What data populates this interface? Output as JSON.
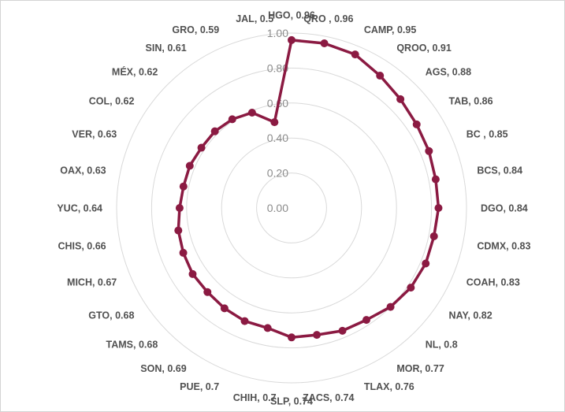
{
  "chart_data": {
    "type": "radar",
    "title": "",
    "rlim": [
      0,
      1
    ],
    "r_ticks": [
      "0.00",
      "0.20",
      "0.40",
      "0.60",
      "0.80",
      "1.00"
    ],
    "grid": true,
    "legend": "none",
    "series_color": "#8B1A42",
    "categories": [
      "HGO",
      "QRO",
      "CAMP",
      "QROO",
      "AGS",
      "TAB",
      "BC",
      "BCS",
      "DGO",
      "CDMX",
      "COAH",
      "NAY",
      "NL",
      "MOR",
      "TLAX",
      "ZACS",
      "SLP",
      "CHIH",
      "PUE",
      "SON",
      "TAMS",
      "GTO",
      "MICH",
      "CHIS",
      "YUC",
      "OAX",
      "VER",
      "COL",
      "MÉX",
      "SIN",
      "GRO",
      "JAL"
    ],
    "values": [
      0.96,
      0.96,
      0.95,
      0.91,
      0.88,
      0.86,
      0.85,
      0.84,
      0.84,
      0.83,
      0.83,
      0.82,
      0.8,
      0.77,
      0.76,
      0.74,
      0.74,
      0.7,
      0.7,
      0.69,
      0.68,
      0.68,
      0.67,
      0.66,
      0.64,
      0.63,
      0.63,
      0.62,
      0.62,
      0.61,
      0.59,
      0.5
    ],
    "labels": [
      "HGO, 0.96",
      "QRO , 0.96",
      "CAMP, 0.95",
      "QROO, 0.91",
      "AGS, 0.88",
      "TAB, 0.86",
      "BC , 0.85",
      "BCS, 0.84",
      "DGO, 0.84",
      "CDMX, 0.83",
      "COAH, 0.83",
      "NAY, 0.82",
      "NL, 0.8",
      "MOR, 0.77",
      "TLAX, 0.76",
      "ZACS, 0.74",
      "SLP, 0.74",
      "CHIH, 0.7",
      "PUE, 0.7",
      "SON, 0.69",
      "TAMS, 0.68",
      "GTO, 0.68",
      "MICH, 0.67",
      "CHIS, 0.66",
      "YUC, 0.64",
      "OAX, 0.63",
      "VER, 0.63",
      "COL, 0.62",
      "MÉX, 0.62",
      "SIN, 0.61",
      "GRO, 0.59",
      "JAL, 0.5"
    ]
  }
}
